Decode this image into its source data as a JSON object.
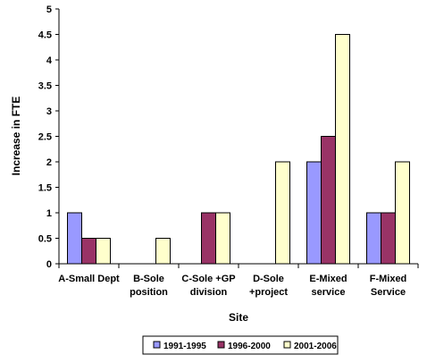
{
  "chart_data": {
    "type": "bar",
    "categories": [
      [
        "A-Small Dept"
      ],
      [
        "B-Sole",
        "position"
      ],
      [
        "C-Sole +GP",
        "division"
      ],
      [
        "D-Sole",
        "+project"
      ],
      [
        "E-Mixed",
        "service"
      ],
      [
        "F-Mixed",
        "Service"
      ]
    ],
    "series": [
      {
        "name": "1991-1995",
        "color": "#9999ff",
        "values": [
          1,
          0,
          0,
          0,
          2,
          1
        ]
      },
      {
        "name": "1996-2000",
        "color": "#993366",
        "values": [
          0.5,
          0,
          1,
          0,
          2.5,
          1
        ]
      },
      {
        "name": "2001-2006",
        "color": "#ffffcc",
        "values": [
          0.5,
          0.5,
          1,
          2,
          4.5,
          2
        ]
      }
    ],
    "xlabel": "Site",
    "ylabel": "Increase in FTE",
    "ylim": [
      0,
      5
    ],
    "yticks": [
      "0",
      "0.5",
      "1",
      "1.5",
      "2",
      "2.5",
      "3",
      "3.5",
      "4",
      "4.5",
      "5"
    ],
    "grid": false,
    "legend_position": "bottom"
  }
}
